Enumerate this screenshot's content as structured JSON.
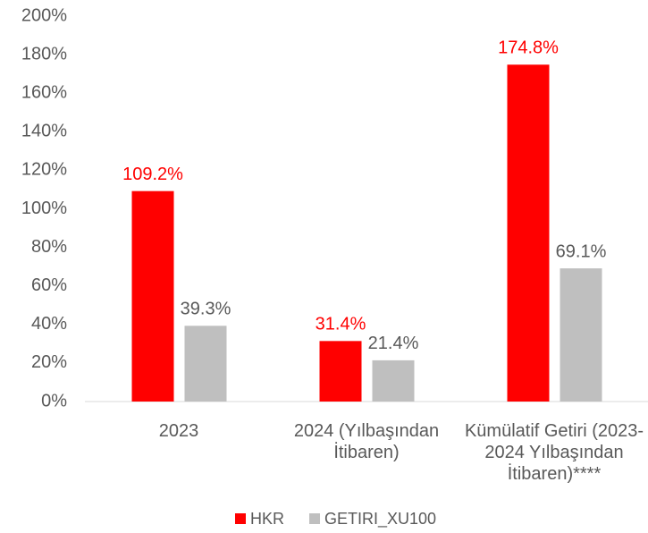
{
  "chart_data": {
    "type": "bar",
    "categories": [
      "2023",
      "2024 (Yılbaşından İtibaren)",
      "Kümülatif Getiri (2023-2024 Yılbaşından İtibaren)****"
    ],
    "series": [
      {
        "name": "HKR",
        "color": "#ff0000",
        "values": [
          109.2,
          31.4,
          174.8
        ],
        "value_labels": [
          "109.2%",
          "31.4%",
          "174.8%"
        ]
      },
      {
        "name": "GETIRI_XU100",
        "color": "#bfbfbf",
        "values": [
          39.3,
          21.4,
          69.1
        ],
        "value_labels": [
          "39.3%",
          "21.4%",
          "69.1%"
        ]
      }
    ],
    "ylim": [
      0,
      200
    ],
    "yticks": [
      {
        "value": 0,
        "label": "0%"
      },
      {
        "value": 20,
        "label": "20%"
      },
      {
        "value": 40,
        "label": "40%"
      },
      {
        "value": 60,
        "label": "60%"
      },
      {
        "value": 80,
        "label": "80%"
      },
      {
        "value": 100,
        "label": "100%"
      },
      {
        "value": 120,
        "label": "120%"
      },
      {
        "value": 140,
        "label": "140%"
      },
      {
        "value": 160,
        "label": "160%"
      },
      {
        "value": 180,
        "label": "180%"
      },
      {
        "value": 200,
        "label": "200%"
      }
    ],
    "grid": false,
    "legend": "bottom"
  }
}
